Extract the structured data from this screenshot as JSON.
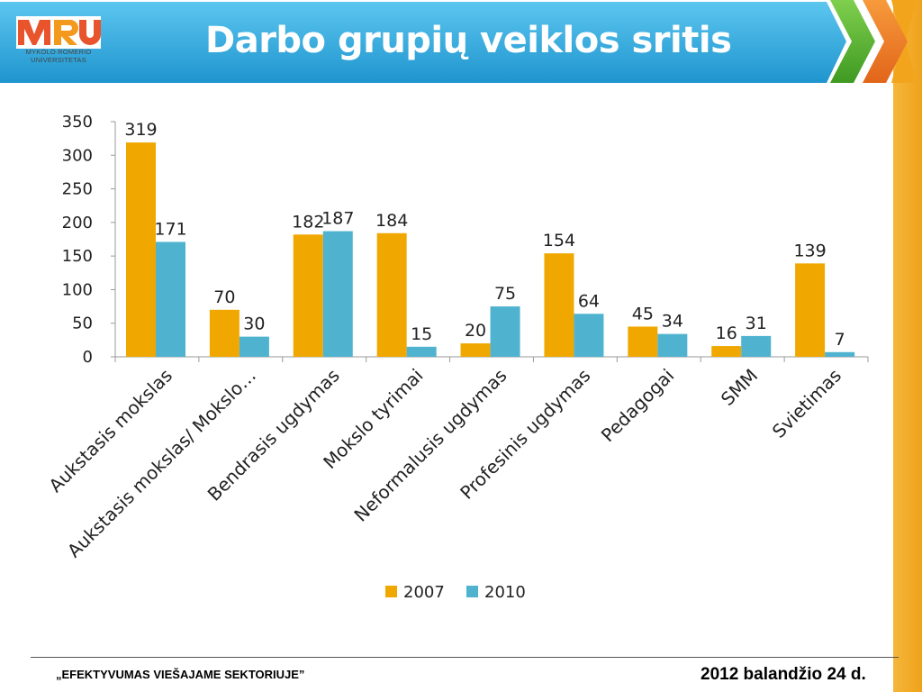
{
  "header": {
    "logo_text_line1": "MYKOLO ROMERIO",
    "logo_text_line2": "UNIVERSITETAS",
    "title": "Darbo grupių veiklos sritis"
  },
  "footer": {
    "left": "„EFEKTYVUMAS VIEŠAJAME SEKTORIUJE”",
    "right": "2012 balandžio 24 d."
  },
  "colors": {
    "series_2007": "#f0a800",
    "series_2010": "#4fb3cf",
    "header_blue": "#2aa6dc",
    "arrow_green": "#5cb531",
    "arrow_orange": "#ee7f22"
  },
  "chart_data": {
    "type": "bar",
    "title": "",
    "xlabel": "",
    "ylabel": "",
    "ylim": [
      0,
      350
    ],
    "yticks": [
      0,
      50,
      100,
      150,
      200,
      250,
      300,
      350
    ],
    "grid": false,
    "legend_position": "bottom",
    "categories": [
      "Aukstasis mokslas",
      "Aukstasis mokslas/ Mokslo…",
      "Bendrasis ugdymas",
      "Mokslo tyrimai",
      "Neformalusis ugdymas",
      "Profesinis ugdymas",
      "Pedagogai",
      "SMM",
      "Svietimas"
    ],
    "series": [
      {
        "name": "2007",
        "color": "#f0a800",
        "values": [
          319,
          70,
          182,
          184,
          20,
          154,
          45,
          16,
          139
        ]
      },
      {
        "name": "2010",
        "color": "#4fb3cf",
        "values": [
          171,
          30,
          187,
          15,
          75,
          64,
          34,
          31,
          7
        ]
      }
    ]
  }
}
